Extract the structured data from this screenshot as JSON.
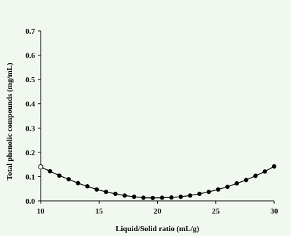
{
  "chart_data": {
    "type": "line",
    "title": "",
    "xlabel": "Liquid/Solid ratio (mL/g)",
    "ylabel": "Total phenolic compounds (mg/mL)",
    "xlim": [
      10,
      30
    ],
    "ylim": [
      0,
      0.7
    ],
    "xticks": [
      "10",
      "15",
      "20",
      "25",
      "30"
    ],
    "yticks": [
      "0.0",
      "0.1",
      "0.2",
      "0.3",
      "0.4",
      "0.5",
      "0.6",
      "0.7"
    ],
    "grid": false,
    "legend": "none",
    "series": [
      {
        "color": "#000000",
        "marker": "filled-circle",
        "first_marker": "open-circle",
        "x": [
          10,
          10.8,
          11.6,
          12.4,
          13.2,
          14.0,
          14.8,
          15.6,
          16.4,
          17.2,
          18.0,
          18.8,
          19.6,
          20.4,
          21.2,
          22.0,
          22.8,
          23.6,
          24.4,
          25.2,
          26.0,
          26.8,
          27.6,
          28.4,
          29.2,
          30.0
        ],
        "y": [
          0.14,
          0.122,
          0.104,
          0.089,
          0.073,
          0.06,
          0.047,
          0.037,
          0.029,
          0.022,
          0.017,
          0.013,
          0.012,
          0.013,
          0.014,
          0.017,
          0.022,
          0.029,
          0.037,
          0.047,
          0.058,
          0.072,
          0.086,
          0.103,
          0.121,
          0.142
        ]
      }
    ]
  }
}
